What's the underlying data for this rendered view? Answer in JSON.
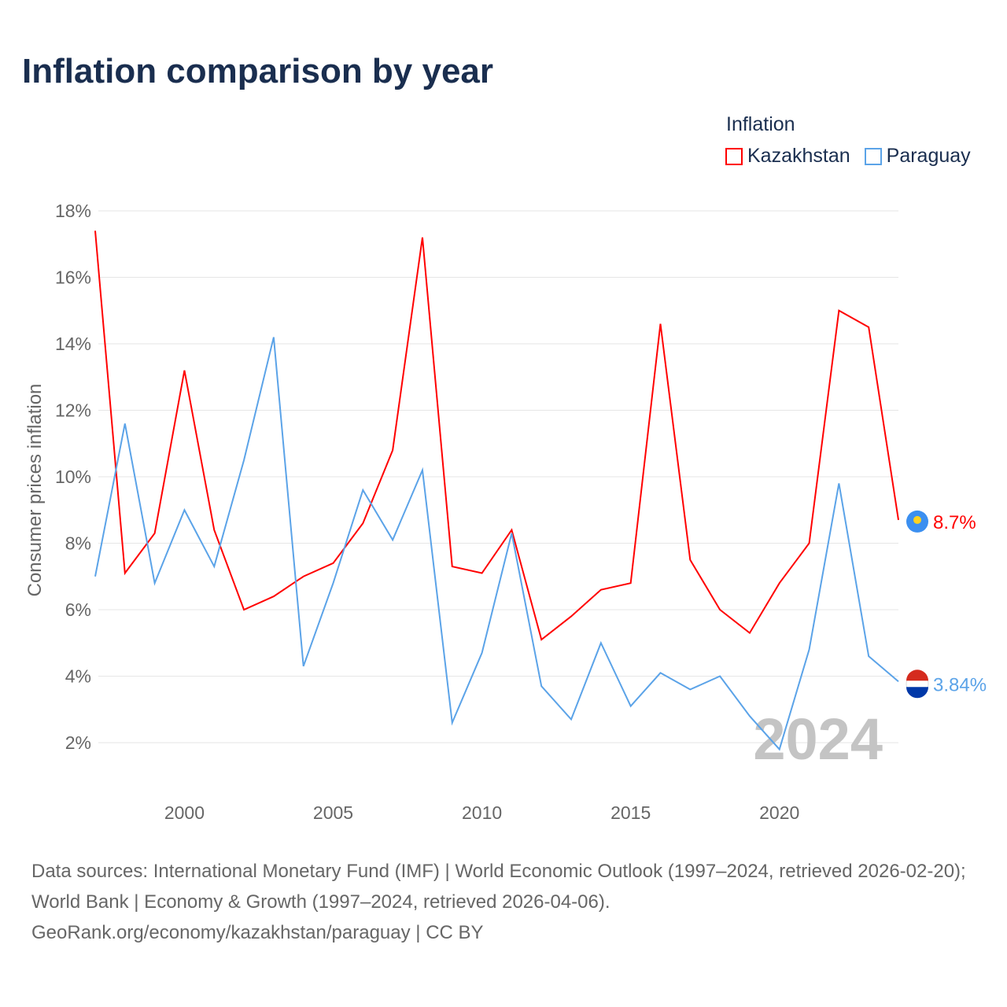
{
  "chart_data": {
    "type": "line",
    "title": "Inflation comparison by year",
    "ylabel": "Consumer prices inflation",
    "xlabel": "",
    "legend_title": "Inflation",
    "legend_position": "top-right",
    "x": [
      1997,
      1998,
      1999,
      2000,
      2001,
      2002,
      2003,
      2004,
      2005,
      2006,
      2007,
      2008,
      2009,
      2010,
      2011,
      2012,
      2013,
      2014,
      2015,
      2016,
      2017,
      2018,
      2019,
      2020,
      2021,
      2022,
      2023,
      2024
    ],
    "xlim": [
      1997,
      2024
    ],
    "ylim": [
      0.5,
      18.5
    ],
    "x_ticks": [
      2000,
      2005,
      2010,
      2015,
      2020
    ],
    "y_ticks": [
      2,
      4,
      6,
      8,
      10,
      12,
      14,
      16,
      18
    ],
    "y_tick_labels": [
      "2%",
      "4%",
      "6%",
      "8%",
      "10%",
      "12%",
      "14%",
      "16%",
      "18%"
    ],
    "grid": true,
    "watermark_year": "2024",
    "series": [
      {
        "name": "Kazakhstan",
        "color": "#ff0000",
        "end_label": "8.7%",
        "values": [
          17.4,
          7.1,
          8.3,
          13.2,
          8.4,
          6.0,
          6.4,
          7.0,
          7.4,
          8.6,
          10.8,
          17.2,
          7.3,
          7.1,
          8.4,
          5.1,
          5.8,
          6.6,
          6.8,
          14.6,
          7.5,
          6.0,
          5.3,
          6.8,
          8.0,
          15.0,
          14.5,
          8.7
        ]
      },
      {
        "name": "Paraguay",
        "color": "#5ba3e8",
        "end_label": "3.84%",
        "values": [
          7.0,
          11.6,
          6.8,
          9.0,
          7.3,
          10.5,
          14.2,
          4.3,
          6.8,
          9.6,
          8.1,
          10.2,
          2.6,
          4.7,
          8.3,
          3.7,
          2.7,
          5.0,
          3.1,
          4.1,
          3.6,
          4.0,
          2.8,
          1.8,
          4.8,
          9.8,
          4.6,
          3.84
        ]
      }
    ]
  },
  "footer": {
    "line1": "Data sources: International Monetary Fund (IMF) | World Economic Outlook (1997–2024, retrieved 2026-02-20); World Bank | Economy & Growth (1997–2024, retrieved 2026-04-06).",
    "line2": "GeoRank.org/economy/kazakhstan/paraguay | CC BY"
  }
}
